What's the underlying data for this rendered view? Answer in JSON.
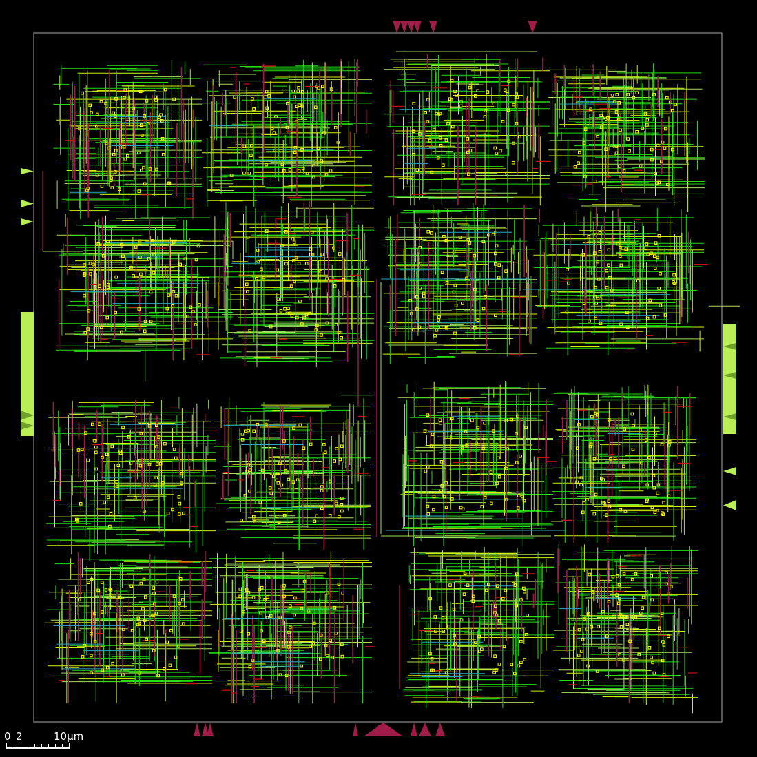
{
  "viewer": {
    "title": "",
    "background_color": "#000000",
    "die_outline_color": "#8c8c8c"
  },
  "scale_bar": {
    "label_zero": "0",
    "label_two": "2",
    "label_ten": "10μm",
    "minor_ticks": 9
  },
  "layers": {
    "metal1_color": "#d4f000",
    "metal2_color": "#22dd11",
    "metal3_color": "#a8e060",
    "metal4_color": "#9a1a4a",
    "metal5_color": "#2aa8c8",
    "via_color": "#ffff00",
    "pin_east_west_color": "#b9ee55",
    "pin_north_south_color": "#a01d4a",
    "blockage_red_color": "#cc1111"
  },
  "layout": {
    "macro_block_count": 16,
    "pins": {
      "north": 6,
      "south": 9,
      "west": 5,
      "east": 8
    }
  }
}
